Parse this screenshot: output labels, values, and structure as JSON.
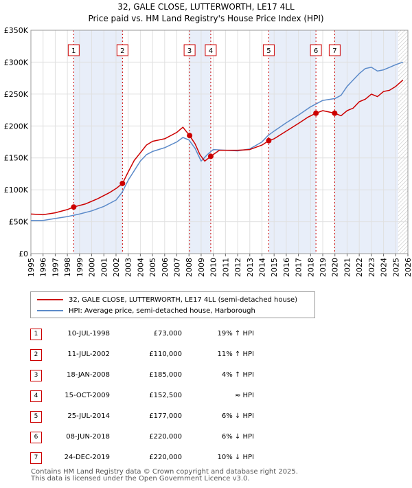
{
  "chart_data": {
    "type": "line",
    "title": "32, GALE CLOSE, LUTTERWORTH, LE17 4LL",
    "subtitle": "Price paid vs. HM Land Registry's House Price Index (HPI)",
    "xlim": [
      1995,
      2026
    ],
    "ylim": [
      0,
      350000
    ],
    "x_ticks": [
      "1995",
      "1996",
      "1997",
      "1998",
      "1999",
      "2000",
      "2001",
      "2002",
      "2003",
      "2004",
      "2005",
      "2006",
      "2007",
      "2008",
      "2009",
      "2010",
      "2011",
      "2012",
      "2013",
      "2014",
      "2015",
      "2016",
      "2017",
      "2018",
      "2019",
      "2020",
      "2021",
      "2022",
      "2023",
      "2024",
      "2025",
      "2026"
    ],
    "y_ticks": [
      {
        "value": 0,
        "label": "£0"
      },
      {
        "value": 50000,
        "label": "£50K"
      },
      {
        "value": 100000,
        "label": "£100K"
      },
      {
        "value": 150000,
        "label": "£150K"
      },
      {
        "value": 200000,
        "label": "£200K"
      },
      {
        "value": 250000,
        "label": "£250K"
      },
      {
        "value": 300000,
        "label": "£300K"
      },
      {
        "value": 350000,
        "label": "£350K"
      }
    ],
    "shaded_spans": [
      [
        1998.52,
        2002.53
      ],
      [
        2008.05,
        2009.79
      ],
      [
        2014.56,
        2018.44
      ],
      [
        2019.98,
        2025.2
      ]
    ],
    "hatched_from": 2025.2,
    "series": [
      {
        "name": "32, GALE CLOSE, LUTTERWORTH, LE17 4LL (semi-detached house)",
        "color": "#cc0000",
        "points": [
          [
            1995.0,
            62000
          ],
          [
            1996.0,
            61000
          ],
          [
            1997.0,
            64000
          ],
          [
            1998.0,
            69000
          ],
          [
            1998.52,
            73000
          ],
          [
            1999.5,
            78000
          ],
          [
            2000.5,
            86000
          ],
          [
            2001.5,
            96000
          ],
          [
            2002.0,
            102000
          ],
          [
            2002.53,
            110000
          ],
          [
            2003.0,
            128000
          ],
          [
            2003.5,
            146000
          ],
          [
            2004.0,
            158000
          ],
          [
            2004.5,
            170000
          ],
          [
            2005.0,
            176000
          ],
          [
            2006.0,
            180000
          ],
          [
            2007.0,
            190000
          ],
          [
            2007.5,
            198000
          ],
          [
            2008.05,
            185000
          ],
          [
            2008.5,
            172000
          ],
          [
            2008.9,
            155000
          ],
          [
            2009.3,
            145000
          ],
          [
            2009.79,
            152500
          ],
          [
            2010.5,
            162000
          ],
          [
            2011.0,
            162000
          ],
          [
            2012.0,
            162000
          ],
          [
            2013.0,
            163000
          ],
          [
            2014.0,
            170000
          ],
          [
            2014.56,
            177000
          ],
          [
            2015.0,
            180000
          ],
          [
            2016.0,
            192000
          ],
          [
            2017.0,
            204000
          ],
          [
            2017.8,
            214000
          ],
          [
            2018.44,
            220000
          ],
          [
            2019.0,
            224000
          ],
          [
            2019.5,
            222000
          ],
          [
            2019.98,
            220000
          ],
          [
            2020.5,
            216000
          ],
          [
            2021.0,
            224000
          ],
          [
            2021.5,
            228000
          ],
          [
            2022.0,
            238000
          ],
          [
            2022.5,
            242000
          ],
          [
            2023.0,
            250000
          ],
          [
            2023.5,
            246000
          ],
          [
            2024.0,
            254000
          ],
          [
            2024.5,
            256000
          ],
          [
            2025.0,
            262000
          ],
          [
            2025.6,
            272000
          ]
        ]
      },
      {
        "name": "HPI: Average price, semi-detached house, Harborough",
        "color": "#5b8ac9",
        "points": [
          [
            1995.0,
            52000
          ],
          [
            1996.0,
            52000
          ],
          [
            1997.0,
            55000
          ],
          [
            1998.0,
            58000
          ],
          [
            1999.0,
            62000
          ],
          [
            2000.0,
            67000
          ],
          [
            2001.0,
            74000
          ],
          [
            2002.0,
            84000
          ],
          [
            2002.5,
            96000
          ],
          [
            2003.0,
            115000
          ],
          [
            2003.5,
            130000
          ],
          [
            2004.0,
            145000
          ],
          [
            2004.5,
            155000
          ],
          [
            2005.0,
            160000
          ],
          [
            2006.0,
            166000
          ],
          [
            2007.0,
            175000
          ],
          [
            2007.5,
            182000
          ],
          [
            2008.0,
            178000
          ],
          [
            2008.5,
            165000
          ],
          [
            2009.0,
            145000
          ],
          [
            2009.5,
            155000
          ],
          [
            2010.0,
            163000
          ],
          [
            2011.0,
            162000
          ],
          [
            2012.0,
            161000
          ],
          [
            2013.0,
            164000
          ],
          [
            2014.0,
            175000
          ],
          [
            2014.5,
            185000
          ],
          [
            2015.0,
            192000
          ],
          [
            2016.0,
            205000
          ],
          [
            2017.0,
            217000
          ],
          [
            2018.0,
            230000
          ],
          [
            2019.0,
            240000
          ],
          [
            2020.0,
            243000
          ],
          [
            2020.5,
            248000
          ],
          [
            2021.0,
            262000
          ],
          [
            2021.5,
            272000
          ],
          [
            2022.0,
            282000
          ],
          [
            2022.5,
            290000
          ],
          [
            2023.0,
            292000
          ],
          [
            2023.5,
            286000
          ],
          [
            2024.0,
            288000
          ],
          [
            2024.5,
            292000
          ],
          [
            2025.0,
            296000
          ],
          [
            2025.6,
            300000
          ]
        ]
      }
    ],
    "sales": [
      {
        "num": "1",
        "date": "10-JUL-1998",
        "year": 1998.52,
        "price": 73000,
        "price_label": "£73,000",
        "hpi": "19% ↑ HPI"
      },
      {
        "num": "2",
        "date": "11-JUL-2002",
        "year": 2002.53,
        "price": 110000,
        "price_label": "£110,000",
        "hpi": "11% ↑ HPI"
      },
      {
        "num": "3",
        "date": "18-JAN-2008",
        "year": 2008.05,
        "price": 185000,
        "price_label": "£185,000",
        "hpi": "4% ↑ HPI"
      },
      {
        "num": "4",
        "date": "15-OCT-2009",
        "year": 2009.79,
        "price": 152500,
        "price_label": "£152,500",
        "hpi": "≈ HPI"
      },
      {
        "num": "5",
        "date": "25-JUL-2014",
        "year": 2014.56,
        "price": 177000,
        "price_label": "£177,000",
        "hpi": "6% ↓ HPI"
      },
      {
        "num": "6",
        "date": "08-JUN-2018",
        "year": 2018.44,
        "price": 220000,
        "price_label": "£220,000",
        "hpi": "6% ↓ HPI"
      },
      {
        "num": "7",
        "date": "24-DEC-2019",
        "year": 2019.98,
        "price": 220000,
        "price_label": "£220,000",
        "hpi": "10% ↓ HPI"
      }
    ]
  },
  "legend": {
    "property_label": "32, GALE CLOSE, LUTTERWORTH, LE17 4LL (semi-detached house)",
    "hpi_label": "HPI: Average price, semi-detached house, Harborough"
  },
  "footer": {
    "line1": "Contains HM Land Registry data © Crown copyright and database right 2025.",
    "line2": "This data is licensed under the Open Government Licence v3.0."
  }
}
